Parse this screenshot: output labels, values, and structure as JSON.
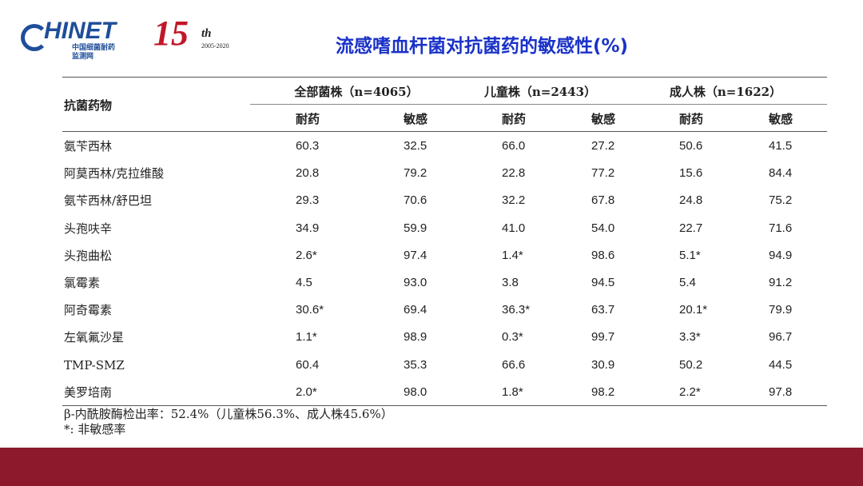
{
  "header": {
    "logo": "HINET",
    "logo_sub": "中国细菌耐药",
    "logo_sub2": "监测网",
    "anniversary": "15",
    "anniversary_sup": "th",
    "years": "2005-2020",
    "title": "流感嗜血杆菌对抗菌药的敏感性(%)"
  },
  "table": {
    "corner": "抗菌药物",
    "groups": [
      "全部菌株（n=4065）",
      "儿童株（n=2443）",
      "成人株（n=1622）"
    ],
    "subheaders": [
      "耐药",
      "敏感",
      "耐药",
      "敏感",
      "耐药",
      "敏感"
    ],
    "rows": [
      [
        "氨苄西林",
        "60.3",
        "32.5",
        "66.0",
        "27.2",
        "50.6",
        "41.5"
      ],
      [
        "阿莫西林/克拉维酸",
        "20.8",
        "79.2",
        "22.8",
        "77.2",
        "15.6",
        "84.4"
      ],
      [
        "氨苄西林/舒巴坦",
        "29.3",
        "70.6",
        "32.2",
        "67.8",
        "24.8",
        "75.2"
      ],
      [
        "头孢呋辛",
        "34.9",
        "59.9",
        "41.0",
        "54.0",
        "22.7",
        "71.6"
      ],
      [
        "头孢曲松",
        "2.6*",
        "97.4",
        "1.4*",
        "98.6",
        "5.1*",
        "94.9"
      ],
      [
        "氯霉素",
        "4.5",
        "93.0",
        "3.8",
        "94.5",
        "5.4",
        "91.2"
      ],
      [
        "阿奇霉素",
        "30.6*",
        "69.4",
        "36.3*",
        "63.7",
        "20.1*",
        "79.9"
      ],
      [
        "左氧氟沙星",
        "1.1*",
        "98.9",
        "0.3*",
        "99.7",
        "3.3*",
        "96.7"
      ],
      [
        "TMP-SMZ",
        "60.4",
        "35.3",
        "66.6",
        "30.9",
        "50.2",
        "44.5"
      ],
      [
        "美罗培南",
        "2.0*",
        "98.0",
        "1.8*",
        "98.2",
        "2.2*",
        "97.8"
      ]
    ]
  },
  "footnotes": [
    "β-内酰胺酶检出率：52.4%（儿童株56.3%、成人株45.6%）",
    "*: 非敏感率"
  ]
}
